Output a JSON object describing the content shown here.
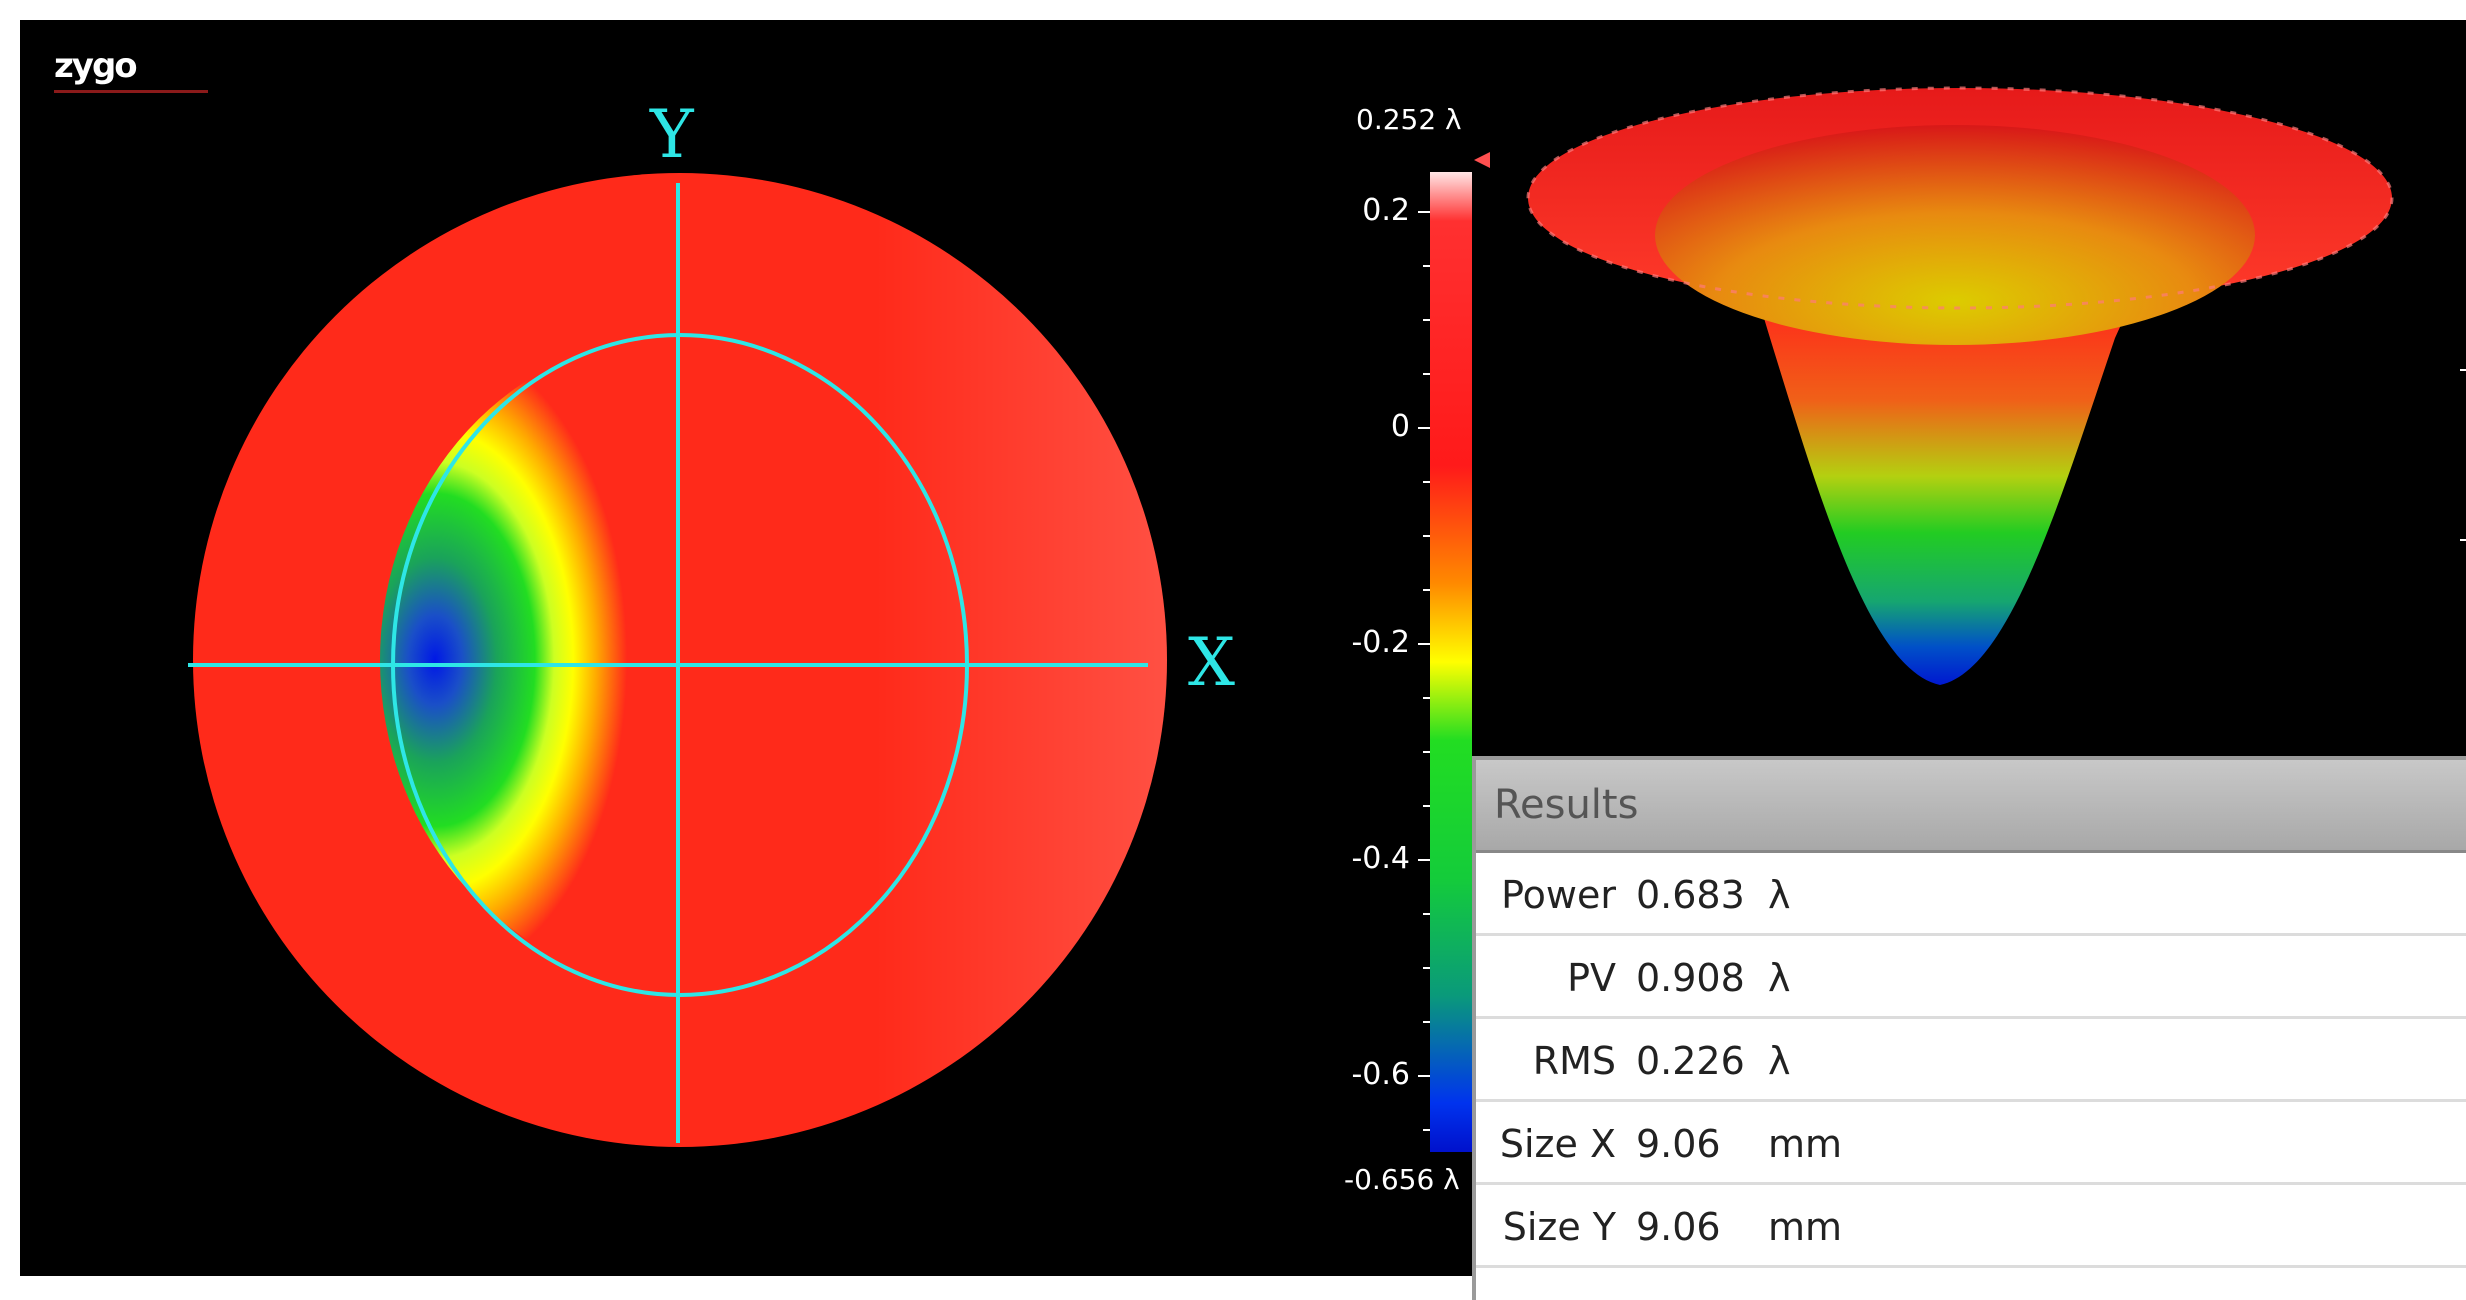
{
  "app": {
    "logo_text": "zygo"
  },
  "axes": {
    "x_label": "X",
    "y_label": "Y"
  },
  "colorbar": {
    "max_label": "0.252 λ",
    "min_label": "-0.656 λ",
    "ticks": [
      "0.2",
      "0",
      "-0.2",
      "-0.4",
      "-0.6"
    ]
  },
  "results": {
    "title": "Results",
    "rows": [
      {
        "name": "Power",
        "value": "0.683",
        "unit": "λ"
      },
      {
        "name": "PV",
        "value": "0.908",
        "unit": "λ"
      },
      {
        "name": "RMS",
        "value": "0.226",
        "unit": "λ"
      },
      {
        "name": "Size X",
        "value": "9.06",
        "unit": "mm"
      },
      {
        "name": "Size Y",
        "value": "9.06",
        "unit": "mm"
      }
    ]
  },
  "colors": {
    "accent": "#2ee6e6",
    "background": "#000000"
  }
}
